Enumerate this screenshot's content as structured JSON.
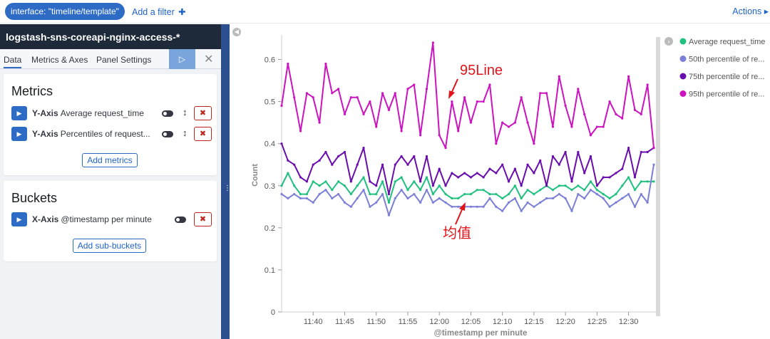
{
  "topbar": {
    "filter_pill": "interface: \"timeline/template\"",
    "add_filter": "Add a filter",
    "add_filter_plus": "✚",
    "actions": "Actions ▸"
  },
  "sidebar": {
    "index_title": "logstash-sns-coreapi-nginx-access-*",
    "tabs": [
      "Data",
      "Metrics & Axes",
      "Panel Settings"
    ],
    "play_icon": "▷",
    "close_icon": "✕",
    "metrics": {
      "heading": "Metrics",
      "items": [
        {
          "axis": "Y-Axis",
          "label": "Average request_time"
        },
        {
          "axis": "Y-Axis",
          "label": "Percentiles of request..."
        }
      ],
      "add_button": "Add metrics"
    },
    "buckets": {
      "heading": "Buckets",
      "items": [
        {
          "axis": "X-Axis",
          "label": "@timestamp per minute"
        }
      ],
      "add_button": "Add sub-buckets"
    }
  },
  "annotations": {
    "line95": "95Line",
    "mean": "均值"
  },
  "colors": {
    "avg": "#20c07f",
    "p50": "#7b7fd6",
    "p75": "#6a0dad",
    "p95": "#cc13c0",
    "annotation": "#e0141a",
    "brand": "#2d6bc4"
  },
  "chart_data": {
    "type": "line",
    "xlabel": "@timestamp per minute",
    "ylabel": "Count",
    "ylim": [
      0,
      0.65
    ],
    "yticks": [
      0,
      0.1,
      0.2,
      0.3,
      0.4,
      0.5,
      0.6
    ],
    "xtick_labels": [
      "11:40",
      "11:45",
      "11:50",
      "11:55",
      "12:00",
      "12:05",
      "12:10",
      "12:15",
      "12:20",
      "12:25",
      "12:30"
    ],
    "xtick_index": [
      5,
      10,
      15,
      20,
      25,
      30,
      35,
      40,
      45,
      50,
      55
    ],
    "legend": [
      "Average request_time",
      "50th percentile of re...",
      "75th percentile of re...",
      "95th percentile of re..."
    ],
    "legend_position": "right",
    "series": [
      {
        "name": "Average request_time",
        "values": [
          0.3,
          0.33,
          0.3,
          0.28,
          0.28,
          0.31,
          0.3,
          0.31,
          0.29,
          0.31,
          0.3,
          0.28,
          0.3,
          0.32,
          0.28,
          0.28,
          0.31,
          0.26,
          0.31,
          0.32,
          0.29,
          0.31,
          0.29,
          0.32,
          0.28,
          0.3,
          0.28,
          0.27,
          0.27,
          0.28,
          0.28,
          0.29,
          0.29,
          0.28,
          0.28,
          0.27,
          0.28,
          0.3,
          0.27,
          0.29,
          0.28,
          0.29,
          0.3,
          0.29,
          0.3,
          0.3,
          0.29,
          0.3,
          0.29,
          0.31,
          0.29,
          0.28,
          0.27,
          0.28,
          0.3,
          0.32,
          0.29,
          0.31,
          0.31,
          0.31
        ]
      },
      {
        "name": "50th percentile of re...",
        "values": [
          0.28,
          0.27,
          0.28,
          0.27,
          0.27,
          0.26,
          0.28,
          0.29,
          0.27,
          0.28,
          0.26,
          0.25,
          0.27,
          0.29,
          0.25,
          0.26,
          0.28,
          0.23,
          0.27,
          0.29,
          0.27,
          0.28,
          0.26,
          0.29,
          0.26,
          0.27,
          0.26,
          0.25,
          0.25,
          0.25,
          0.25,
          0.25,
          0.25,
          0.27,
          0.25,
          0.24,
          0.26,
          0.27,
          0.24,
          0.26,
          0.25,
          0.26,
          0.27,
          0.27,
          0.28,
          0.27,
          0.24,
          0.28,
          0.27,
          0.29,
          0.28,
          0.27,
          0.25,
          0.26,
          0.27,
          0.28,
          0.25,
          0.28,
          0.26,
          0.35
        ]
      },
      {
        "name": "75th percentile of re...",
        "values": [
          0.4,
          0.36,
          0.35,
          0.32,
          0.31,
          0.35,
          0.36,
          0.38,
          0.35,
          0.37,
          0.38,
          0.31,
          0.35,
          0.39,
          0.31,
          0.3,
          0.35,
          0.28,
          0.35,
          0.37,
          0.35,
          0.37,
          0.31,
          0.37,
          0.3,
          0.34,
          0.3,
          0.33,
          0.32,
          0.33,
          0.32,
          0.33,
          0.32,
          0.34,
          0.33,
          0.35,
          0.31,
          0.34,
          0.3,
          0.35,
          0.33,
          0.36,
          0.3,
          0.37,
          0.35,
          0.38,
          0.31,
          0.38,
          0.33,
          0.37,
          0.3,
          0.32,
          0.32,
          0.33,
          0.34,
          0.39,
          0.32,
          0.38,
          0.38,
          0.39
        ]
      },
      {
        "name": "95th percentile of re...",
        "values": [
          0.49,
          0.59,
          0.51,
          0.43,
          0.52,
          0.51,
          0.45,
          0.59,
          0.52,
          0.53,
          0.47,
          0.51,
          0.51,
          0.47,
          0.5,
          0.44,
          0.52,
          0.48,
          0.52,
          0.43,
          0.53,
          0.54,
          0.42,
          0.53,
          0.64,
          0.42,
          0.39,
          0.5,
          0.43,
          0.51,
          0.45,
          0.5,
          0.5,
          0.54,
          0.4,
          0.45,
          0.44,
          0.45,
          0.51,
          0.45,
          0.4,
          0.52,
          0.52,
          0.44,
          0.56,
          0.49,
          0.44,
          0.53,
          0.47,
          0.42,
          0.44,
          0.44,
          0.5,
          0.47,
          0.46,
          0.56,
          0.48,
          0.47,
          0.54,
          0.39
        ]
      }
    ]
  }
}
